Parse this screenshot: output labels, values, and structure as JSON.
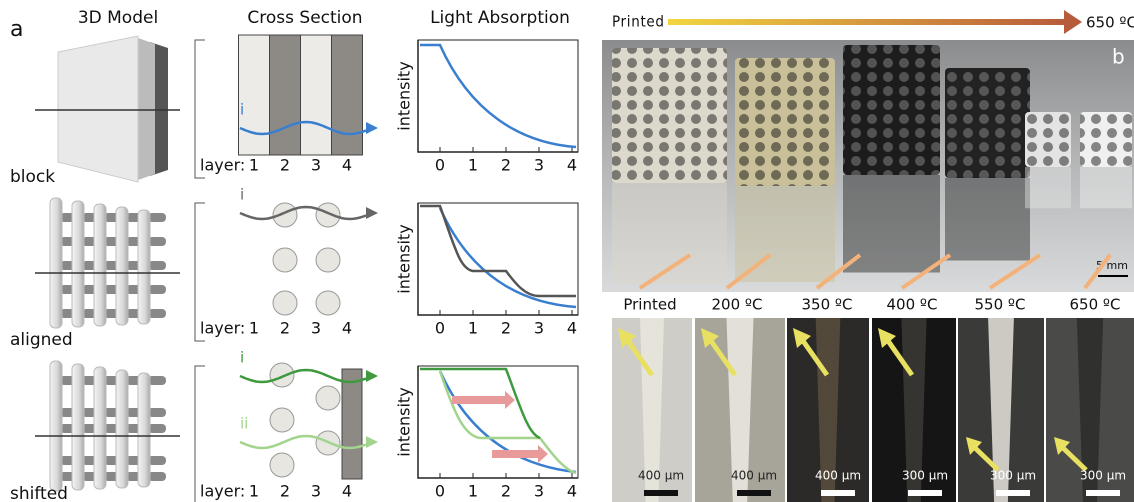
{
  "panel_a": {
    "label": "a",
    "headers": [
      "3D Model",
      "Cross Section",
      "Light Absorption"
    ],
    "rows": [
      {
        "name": "block",
        "layer_label": "layer:",
        "layers": [
          "1",
          "2",
          "3",
          "4"
        ],
        "rays": [
          "i"
        ],
        "y_label": "intensity",
        "x_ticks": [
          "0",
          "1",
          "2",
          "3",
          "4"
        ]
      },
      {
        "name": "aligned",
        "layer_label": "layer:",
        "layers": [
          "1",
          "2",
          "3",
          "4"
        ],
        "rays": [
          "i"
        ],
        "y_label": "intensity",
        "x_ticks": [
          "0",
          "1",
          "2",
          "3",
          "4"
        ]
      },
      {
        "name": "shifted",
        "layer_label": "layer:",
        "layers": [
          "1",
          "2",
          "3",
          "4"
        ],
        "rays": [
          "i",
          "ii"
        ],
        "y_label": "intensity",
        "x_ticks": [
          "0",
          "1",
          "2",
          "3",
          "4"
        ]
      }
    ]
  },
  "panel_b": {
    "label": "b",
    "arrow_start": "Printed",
    "arrow_end": "650 ºC",
    "scale_bar": "5 mm",
    "samples": [
      {
        "label": "Printed",
        "scale_bar": "400 μm"
      },
      {
        "label": "200 ºC",
        "scale_bar": "400 μm"
      },
      {
        "label": "350 ºC",
        "scale_bar": "400 μm"
      },
      {
        "label": "400 ºC",
        "scale_bar": "300 μm"
      },
      {
        "label": "550 ºC",
        "scale_bar": "300 μm"
      },
      {
        "label": "650 ºC",
        "scale_bar": "300 μm"
      }
    ]
  }
}
